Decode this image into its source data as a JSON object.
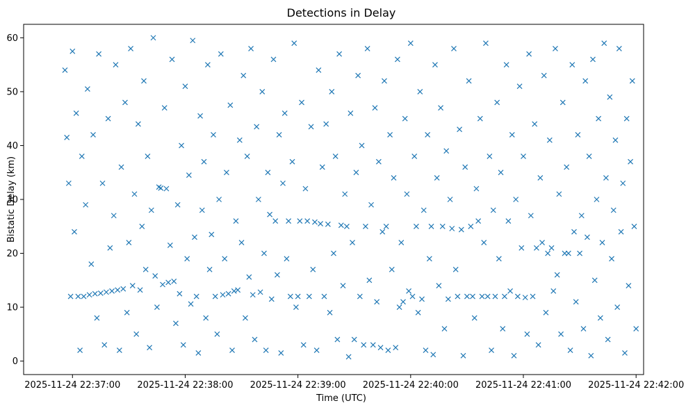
{
  "chart_data": {
    "type": "scatter",
    "title": "Detections in Delay",
    "xlabel": "Time (UTC)",
    "ylabel": "Bistatic Delay (km)",
    "marker": "x",
    "color": "#1f77b4",
    "xlim": [
      "2025-11-24 22:36:34",
      "2025-11-24 22:42:04"
    ],
    "ylim": [
      -2.5,
      62.5
    ],
    "x_ticks": [
      {
        "value": "2025-11-24 22:37:00",
        "label": "2025-11-24 22:37:00"
      },
      {
        "value": "2025-11-24 22:38:00",
        "label": "2025-11-24 22:38:00"
      },
      {
        "value": "2025-11-24 22:39:00",
        "label": "2025-11-24 22:39:00"
      },
      {
        "value": "2025-11-24 22:40:00",
        "label": "2025-11-24 22:40:00"
      },
      {
        "value": "2025-11-24 22:41:00",
        "label": "2025-11-24 22:41:00"
      },
      {
        "value": "2025-11-24 22:42:00",
        "label": "2025-11-24 22:42:00"
      }
    ],
    "y_ticks": [
      {
        "value": 0,
        "label": "0"
      },
      {
        "value": 10,
        "label": "10"
      },
      {
        "value": 20,
        "label": "20"
      },
      {
        "value": 30,
        "label": "30"
      },
      {
        "value": 40,
        "label": "40"
      },
      {
        "value": 50,
        "label": "50"
      },
      {
        "value": 60,
        "label": "60"
      }
    ],
    "time_range_s": [
      0,
      305
    ],
    "series": [
      {
        "name": "Detections",
        "points": [
          [
            0,
            54
          ],
          [
            1,
            41.5
          ],
          [
            2,
            33
          ],
          [
            3,
            12
          ],
          [
            4,
            57.5
          ],
          [
            5,
            24
          ],
          [
            6,
            46
          ],
          [
            7,
            12
          ],
          [
            8,
            2
          ],
          [
            9,
            38
          ],
          [
            10,
            12
          ],
          [
            11,
            29
          ],
          [
            12,
            50.5
          ],
          [
            13,
            12.3
          ],
          [
            14,
            18
          ],
          [
            15,
            42
          ],
          [
            16,
            12.5
          ],
          [
            17,
            8
          ],
          [
            18,
            57
          ],
          [
            19,
            12.6
          ],
          [
            20,
            33
          ],
          [
            21,
            3
          ],
          [
            22,
            12.8
          ],
          [
            23,
            45
          ],
          [
            24,
            21
          ],
          [
            25,
            13
          ],
          [
            26,
            27
          ],
          [
            27,
            55
          ],
          [
            28,
            13.2
          ],
          [
            29,
            2
          ],
          [
            30,
            36
          ],
          [
            31,
            13.4
          ],
          [
            32,
            48
          ],
          [
            33,
            9
          ],
          [
            34,
            22
          ],
          [
            35,
            58
          ],
          [
            36,
            14
          ],
          [
            37,
            31
          ],
          [
            38,
            5
          ],
          [
            39,
            44
          ],
          [
            40,
            13.2
          ],
          [
            41,
            25
          ],
          [
            42,
            52
          ],
          [
            43,
            17
          ],
          [
            44,
            38
          ],
          [
            45,
            2.5
          ],
          [
            46,
            28
          ],
          [
            47,
            60
          ],
          [
            48,
            15.8
          ],
          [
            49,
            10
          ],
          [
            50,
            32.3
          ],
          [
            51,
            32.1
          ],
          [
            52,
            14.2
          ],
          [
            53,
            47
          ],
          [
            54,
            32
          ],
          [
            55,
            14.6
          ],
          [
            56,
            21.5
          ],
          [
            57,
            56
          ],
          [
            58,
            14.8
          ],
          [
            59,
            7
          ],
          [
            60,
            29
          ],
          [
            61,
            12.5
          ],
          [
            62,
            40
          ],
          [
            63,
            3
          ],
          [
            64,
            51
          ],
          [
            65,
            19
          ],
          [
            66,
            34.5
          ],
          [
            67,
            10.6
          ],
          [
            68,
            59.5
          ],
          [
            69,
            23
          ],
          [
            70,
            12
          ],
          [
            71,
            1.5
          ],
          [
            72,
            45.5
          ],
          [
            73,
            28
          ],
          [
            74,
            37
          ],
          [
            75,
            8
          ],
          [
            76,
            55
          ],
          [
            77,
            17
          ],
          [
            78,
            23.5
          ],
          [
            79,
            42
          ],
          [
            80,
            12
          ],
          [
            81,
            5
          ],
          [
            82,
            30
          ],
          [
            83,
            57
          ],
          [
            84,
            12.3
          ],
          [
            85,
            19
          ],
          [
            86,
            35
          ],
          [
            87,
            12.5
          ],
          [
            88,
            47.5
          ],
          [
            89,
            2
          ],
          [
            90,
            13
          ],
          [
            91,
            26
          ],
          [
            92,
            13.2
          ],
          [
            93,
            41
          ],
          [
            94,
            22
          ],
          [
            95,
            53
          ],
          [
            96,
            8
          ],
          [
            97,
            38
          ],
          [
            98,
            15.6
          ],
          [
            99,
            58
          ],
          [
            100,
            12.3
          ],
          [
            101,
            4
          ],
          [
            102,
            43.5
          ],
          [
            103,
            30
          ],
          [
            104,
            12.8
          ],
          [
            105,
            50
          ],
          [
            106,
            20
          ],
          [
            107,
            2
          ],
          [
            108,
            35
          ],
          [
            109,
            27.2
          ],
          [
            110,
            11.5
          ],
          [
            111,
            56
          ],
          [
            112,
            26
          ],
          [
            113,
            16
          ],
          [
            114,
            42
          ],
          [
            115,
            1.5
          ],
          [
            116,
            33
          ],
          [
            117,
            46
          ],
          [
            118,
            19
          ],
          [
            119,
            26
          ],
          [
            120,
            12
          ],
          [
            121,
            37
          ],
          [
            122,
            59
          ],
          [
            123,
            10
          ],
          [
            124,
            12
          ],
          [
            125,
            26
          ],
          [
            126,
            48
          ],
          [
            127,
            3
          ],
          [
            128,
            32
          ],
          [
            129,
            26
          ],
          [
            130,
            12
          ],
          [
            131,
            43.5
          ],
          [
            132,
            17
          ],
          [
            133,
            25.8
          ],
          [
            134,
            2
          ],
          [
            135,
            54
          ],
          [
            136,
            25.5
          ],
          [
            137,
            36
          ],
          [
            138,
            12
          ],
          [
            139,
            44
          ],
          [
            140,
            25.4
          ],
          [
            141,
            9
          ],
          [
            142,
            50
          ],
          [
            143,
            20
          ],
          [
            144,
            38
          ],
          [
            145,
            4
          ],
          [
            146,
            57
          ],
          [
            147,
            25.2
          ],
          [
            148,
            14
          ],
          [
            149,
            31
          ],
          [
            150,
            25
          ],
          [
            151,
            0.8
          ],
          [
            152,
            46
          ],
          [
            153,
            22
          ],
          [
            154,
            4
          ],
          [
            155,
            35
          ],
          [
            156,
            53
          ],
          [
            157,
            12
          ],
          [
            158,
            40
          ],
          [
            159,
            3
          ],
          [
            160,
            25
          ],
          [
            161,
            58
          ],
          [
            162,
            15
          ],
          [
            163,
            29
          ],
          [
            164,
            3
          ],
          [
            165,
            47
          ],
          [
            166,
            11
          ],
          [
            167,
            37
          ],
          [
            168,
            2.5
          ],
          [
            169,
            24
          ],
          [
            170,
            52
          ],
          [
            171,
            25
          ],
          [
            172,
            2
          ],
          [
            173,
            42
          ],
          [
            174,
            17
          ],
          [
            175,
            34
          ],
          [
            176,
            2.5
          ],
          [
            177,
            56
          ],
          [
            178,
            10
          ],
          [
            179,
            22
          ],
          [
            180,
            11
          ],
          [
            181,
            45
          ],
          [
            182,
            31
          ],
          [
            183,
            13
          ],
          [
            184,
            59
          ],
          [
            185,
            12
          ],
          [
            186,
            38
          ],
          [
            187,
            25
          ],
          [
            188,
            9
          ],
          [
            189,
            50
          ],
          [
            190,
            11.5
          ],
          [
            191,
            28
          ],
          [
            192,
            2
          ],
          [
            193,
            42
          ],
          [
            194,
            19
          ],
          [
            195,
            25
          ],
          [
            196,
            1.2
          ],
          [
            197,
            55
          ],
          [
            198,
            34
          ],
          [
            199,
            14
          ],
          [
            200,
            47
          ],
          [
            201,
            25
          ],
          [
            202,
            6
          ],
          [
            203,
            39
          ],
          [
            204,
            11.5
          ],
          [
            205,
            30
          ],
          [
            206,
            24.6
          ],
          [
            207,
            58
          ],
          [
            208,
            17
          ],
          [
            209,
            12
          ],
          [
            210,
            43
          ],
          [
            211,
            24.4
          ],
          [
            212,
            1
          ],
          [
            213,
            36
          ],
          [
            214,
            12
          ],
          [
            215,
            52
          ],
          [
            216,
            25
          ],
          [
            217,
            12
          ],
          [
            218,
            8
          ],
          [
            219,
            32
          ],
          [
            220,
            26
          ],
          [
            221,
            45
          ],
          [
            222,
            12
          ],
          [
            223,
            22
          ],
          [
            224,
            59
          ],
          [
            225,
            12
          ],
          [
            226,
            38
          ],
          [
            227,
            2
          ],
          [
            228,
            28
          ],
          [
            229,
            12
          ],
          [
            230,
            48
          ],
          [
            231,
            19
          ],
          [
            232,
            35
          ],
          [
            233,
            6
          ],
          [
            234,
            12
          ],
          [
            235,
            55
          ],
          [
            236,
            26
          ],
          [
            237,
            13
          ],
          [
            238,
            42
          ],
          [
            239,
            1
          ],
          [
            240,
            30
          ],
          [
            241,
            12
          ],
          [
            242,
            51
          ],
          [
            243,
            21
          ],
          [
            244,
            38
          ],
          [
            245,
            11.8
          ],
          [
            246,
            5
          ],
          [
            247,
            57
          ],
          [
            248,
            27
          ],
          [
            249,
            12
          ],
          [
            250,
            44
          ],
          [
            251,
            21
          ],
          [
            252,
            3
          ],
          [
            253,
            34
          ],
          [
            254,
            22
          ],
          [
            255,
            53
          ],
          [
            256,
            9
          ],
          [
            257,
            20
          ],
          [
            258,
            41
          ],
          [
            259,
            21
          ],
          [
            260,
            13
          ],
          [
            261,
            58
          ],
          [
            262,
            16
          ],
          [
            263,
            31
          ],
          [
            264,
            5
          ],
          [
            265,
            48
          ],
          [
            266,
            20
          ],
          [
            267,
            36
          ],
          [
            268,
            20
          ],
          [
            269,
            2
          ],
          [
            270,
            55
          ],
          [
            271,
            24
          ],
          [
            272,
            11
          ],
          [
            273,
            42
          ],
          [
            274,
            20
          ],
          [
            275,
            27
          ],
          [
            276,
            6
          ],
          [
            277,
            52
          ],
          [
            278,
            23
          ],
          [
            279,
            38
          ],
          [
            280,
            1
          ],
          [
            281,
            56
          ],
          [
            282,
            15
          ],
          [
            283,
            30
          ],
          [
            284,
            45
          ],
          [
            285,
            8
          ],
          [
            286,
            22
          ],
          [
            287,
            59
          ],
          [
            288,
            34
          ],
          [
            289,
            4
          ],
          [
            290,
            49
          ],
          [
            291,
            19
          ],
          [
            292,
            28
          ],
          [
            293,
            41
          ],
          [
            294,
            10
          ],
          [
            295,
            58
          ],
          [
            296,
            24
          ],
          [
            297,
            33
          ],
          [
            298,
            1.5
          ],
          [
            299,
            45
          ],
          [
            300,
            14
          ],
          [
            301,
            37
          ],
          [
            302,
            52
          ],
          [
            303,
            25
          ],
          [
            304,
            6
          ]
        ]
      }
    ]
  }
}
